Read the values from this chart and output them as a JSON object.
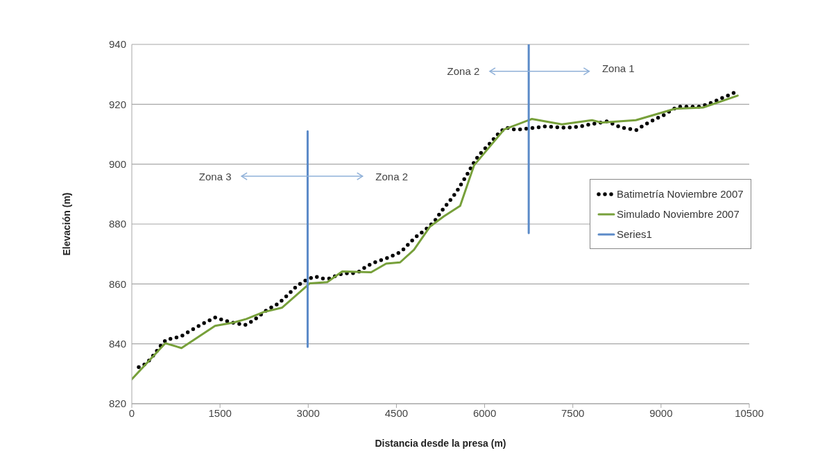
{
  "chart_data": {
    "type": "line",
    "xlabel": "Distancia  desde la presa (m)",
    "ylabel": "Elevación (m)",
    "xlim": [
      0,
      10500
    ],
    "xticks": [
      0,
      1500,
      3000,
      4500,
      6000,
      7500,
      9000,
      10500
    ],
    "ylim": [
      820,
      940
    ],
    "yticks": [
      820,
      840,
      860,
      880,
      900,
      920,
      940
    ],
    "grid": "y",
    "legend": "right",
    "marker": "none",
    "series": [
      {
        "name": "Batimetría Noviembre 2007",
        "color": "#000000",
        "line_style": "dotted",
        "x": [
          118,
          244,
          334,
          413,
          492,
          582,
          708,
          838,
          956,
          1070,
          1188,
          1306,
          1416,
          1546,
          1672,
          1801,
          1927,
          2045,
          2151,
          2250,
          2368,
          2486,
          2587,
          2682,
          2780,
          2879,
          2989,
          3115,
          3237,
          3363,
          3488,
          3610,
          3744,
          3862,
          3972,
          4090,
          4216,
          4334,
          4463,
          4582,
          4672,
          4767,
          4865,
          4975,
          5073,
          5160,
          5238,
          5317,
          5400,
          5486,
          5553,
          5624,
          5695,
          5761,
          5828,
          5907,
          5997,
          6088,
          6174,
          6261,
          6363,
          6497,
          6627,
          6757,
          6890,
          7020,
          7150,
          7283,
          7413,
          7551,
          7681,
          7814,
          7944,
          8082,
          8200,
          8326,
          8456,
          8581,
          8692,
          8810,
          8928,
          9046,
          9164,
          9289,
          9419,
          9549,
          9675,
          9800,
          9918,
          10048,
          10173,
          10291
        ],
        "values": [
          832.2,
          833.4,
          835.3,
          837.3,
          839.4,
          841.3,
          841.9,
          842.5,
          843.9,
          845.2,
          846.5,
          847.7,
          848.8,
          848.0,
          847.3,
          846.7,
          846.3,
          847.5,
          849.0,
          850.7,
          852.1,
          853.4,
          855.1,
          856.9,
          858.8,
          860.3,
          861.6,
          862.5,
          861.8,
          861.8,
          862.9,
          863.6,
          863.5,
          864.1,
          865.6,
          866.9,
          867.8,
          868.6,
          869.7,
          870.8,
          872.6,
          874.5,
          876.3,
          877.8,
          879.5,
          881.3,
          883.5,
          885.6,
          887.6,
          889.8,
          891.7,
          894.1,
          896.3,
          898.6,
          900.9,
          903.1,
          905.0,
          906.9,
          908.9,
          910.8,
          912.2,
          911.6,
          911.6,
          912.0,
          912.2,
          912.6,
          912.5,
          912.2,
          912.2,
          912.4,
          912.8,
          913.4,
          913.8,
          914.3,
          913.3,
          912.2,
          911.8,
          911.4,
          912.8,
          914.1,
          915.3,
          916.4,
          917.9,
          919.2,
          919.2,
          919.2,
          919.2,
          920.1,
          921.0,
          922.2,
          923.2,
          924.3
        ]
      },
      {
        "name": "Simulado Noviembre 2007",
        "color": "#77a03a",
        "line_style": "solid",
        "x": [
          0,
          570,
          845,
          1416,
          1730,
          1947,
          2242,
          2557,
          3028,
          3323,
          3580,
          4070,
          4326,
          4562,
          4798,
          5073,
          5309,
          5584,
          5820,
          6332,
          6804,
          7315,
          7826,
          7983,
          8572,
          9240,
          9713,
          10303
        ],
        "values": [
          828.2,
          840.2,
          838.6,
          846.0,
          847.1,
          848.3,
          850.6,
          852.1,
          860.2,
          860.6,
          864.2,
          863.9,
          866.8,
          867.2,
          871.4,
          879.2,
          882.6,
          886.1,
          899.6,
          911.6,
          915.1,
          913.3,
          914.7,
          913.9,
          914.7,
          918.5,
          918.9,
          922.9
        ]
      },
      {
        "name": "Series1",
        "color": "#5b8ac8",
        "line_style": "solid",
        "x": [
          2990,
          2990,
          null,
          6750,
          6750
        ],
        "values": [
          911,
          839,
          null,
          940,
          877
        ]
      }
    ],
    "annotations": [
      "Zona 3",
      "Zona 2",
      "Zona 2",
      "Zona 1"
    ]
  }
}
